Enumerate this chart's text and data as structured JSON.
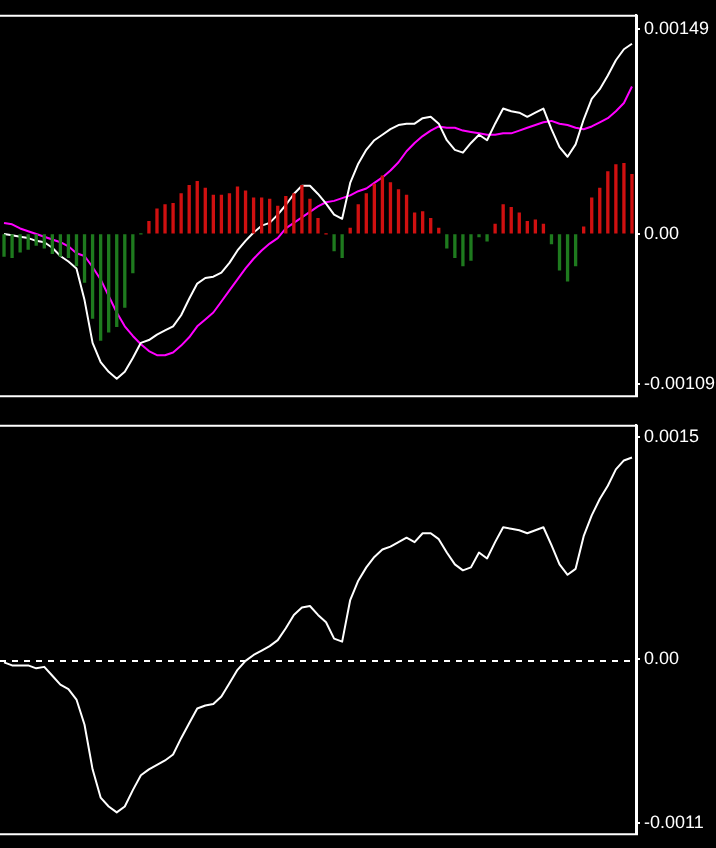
{
  "chart_data": [
    {
      "type": "bar",
      "categories": [
        null,
        null,
        null,
        null,
        null,
        null,
        null,
        null,
        null,
        null,
        null,
        null,
        null,
        null,
        null,
        null,
        null,
        null,
        null,
        null,
        null,
        null,
        null,
        null,
        null,
        null,
        null,
        null,
        null,
        null,
        null,
        null,
        null,
        null,
        null,
        null,
        null,
        null,
        null,
        null,
        null,
        null,
        null,
        null,
        null,
        null,
        null,
        null,
        null,
        null,
        null,
        null,
        null,
        null,
        null,
        null,
        null,
        null,
        null,
        null,
        null,
        null,
        null,
        null,
        null,
        null,
        null,
        null,
        null,
        null,
        null,
        null,
        null,
        null,
        null,
        null,
        null,
        null,
        null
      ],
      "ylim": [
        -0.00117,
        0.00159
      ],
      "yticks": [
        0.00149,
        {
          "value": 0,
          "label": "0.00"
        },
        -0.00109
      ],
      "tick_labels": "y",
      "grid": false,
      "legend": false,
      "marker": "none",
      "series": [
        {
          "values": [
            -0.00016,
            -0.00017,
            -0.00013,
            -0.00011,
            -8e-05,
            -0.0001,
            -0.00014,
            -0.00016,
            -0.00017,
            -0.00023,
            -0.00035,
            -0.00061,
            -0.00077,
            -0.00071,
            -0.00067,
            -0.00053,
            -0.00028,
            0,
            9e-05,
            0.00018,
            0.00021,
            0.00022,
            0.00029,
            0.00035,
            0.00038,
            0.00033,
            0.00028,
            0.00028,
            0.00029,
            0.00034,
            0.00031,
            0.00026,
            0.00026,
            0.00025,
            0.0002,
            0.00027,
            0.00029,
            0.00035,
            0.00025,
            0.00011,
            0,
            -0.00012,
            -0.00017,
            4e-05,
            0.00021,
            0.00029,
            0.00036,
            0.00042,
            0.00037,
            0.00032,
            0.00028,
            0.00015,
            0.00016,
            0.00011,
            4e-05,
            -0.0001,
            -0.00017,
            -0.00023,
            -0.00019,
            -2e-05,
            -5e-05,
            7e-05,
            0.00021,
            0.00019,
            0.00015,
            9e-05,
            0.0001,
            7e-05,
            -7e-05,
            -0.00026,
            -0.00034,
            -0.00023,
            5e-05,
            0.00026,
            0.00033,
            0.00045,
            0.0005,
            0.00051,
            0.00043
          ],
          "colors": [
            "#1e7a1e",
            "#1e7a1e",
            "#1e7a1e",
            "#1e7a1e",
            "#1e7a1e",
            "#1e7a1e",
            "#1e7a1e",
            "#1e7a1e",
            "#1e7a1e",
            "#1e7a1e",
            "#1e7a1e",
            "#1e7a1e",
            "#1e7a1e",
            "#1e7a1e",
            "#1e7a1e",
            "#1e7a1e",
            "#1e7a1e",
            "#1e7a1e",
            "#d01010",
            "#d01010",
            "#d01010",
            "#d01010",
            "#d01010",
            "#d01010",
            "#d01010",
            "#d01010",
            "#d01010",
            "#d01010",
            "#d01010",
            "#d01010",
            "#d01010",
            "#d01010",
            "#d01010",
            "#d01010",
            "#d01010",
            "#d01010",
            "#d01010",
            "#d01010",
            "#d01010",
            "#d01010",
            "#d01010",
            "#1e7a1e",
            "#1e7a1e",
            "#d01010",
            "#d01010",
            "#d01010",
            "#d01010",
            "#d01010",
            "#d01010",
            "#d01010",
            "#d01010",
            "#d01010",
            "#d01010",
            "#d01010",
            "#d01010",
            "#1e7a1e",
            "#1e7a1e",
            "#1e7a1e",
            "#1e7a1e",
            "#1e7a1e",
            "#1e7a1e",
            "#d01010",
            "#d01010",
            "#d01010",
            "#d01010",
            "#d01010",
            "#d01010",
            "#d01010",
            "#1e7a1e",
            "#1e7a1e",
            "#1e7a1e",
            "#1e7a1e",
            "#d01010",
            "#d01010",
            "#d01010",
            "#d01010",
            "#d01010",
            "#d01010",
            "#d01010"
          ]
        },
        {
          "type": "line",
          "color": "#ffffff",
          "values": [
            0,
            -1e-05,
            -2e-05,
            -3e-05,
            -5e-05,
            -6e-05,
            -0.0001,
            -0.00016,
            -0.0002,
            -0.00025,
            -0.00048,
            -0.00079,
            -0.00093,
            -0.001,
            -0.00105,
            -0.001,
            -0.0009,
            -0.00079,
            -0.00077,
            -0.00073,
            -0.0007,
            -0.00067,
            -0.00059,
            -0.00047,
            -0.00036,
            -0.00032,
            -0.00031,
            -0.00028,
            -0.00021,
            -0.00012,
            -5e-05,
            1e-05,
            6e-05,
            8e-05,
            0.00014,
            0.00021,
            0.00029,
            0.00035,
            0.00035,
            0.00029,
            0.00022,
            0.00014,
            0.00011,
            0.00037,
            0.00051,
            0.00061,
            0.00068,
            0.00072,
            0.00076,
            0.00079,
            0.0008,
            0.0008,
            0.00084,
            0.00085,
            0.0008,
            0.00068,
            0.00061,
            0.00059,
            0.00066,
            0.00072,
            0.00068,
            0.0008,
            0.00091,
            0.00089,
            0.00088,
            0.00085,
            0.00088,
            0.00091,
            0.00076,
            0.00063,
            0.00056,
            0.00065,
            0.00083,
            0.00098,
            0.00105,
            0.00115,
            0.00126,
            0.00134,
            0.00138
          ]
        },
        {
          "type": "line",
          "color": "#ff00ff",
          "values": [
            8e-05,
            7e-05,
            4e-05,
            2e-05,
            0,
            -2e-05,
            -4e-05,
            -6e-05,
            -9e-05,
            -0.00014,
            -0.00016,
            -0.00024,
            -0.00033,
            -0.00045,
            -0.00057,
            -0.00067,
            -0.00074,
            -0.0008,
            -0.00085,
            -0.00088,
            -0.00088,
            -0.00086,
            -0.00081,
            -0.00075,
            -0.00067,
            -0.00062,
            -0.00057,
            -0.00049,
            -0.00041,
            -0.00033,
            -0.00025,
            -0.00018,
            -0.00012,
            -7e-05,
            -3e-05,
            4e-05,
            8e-05,
            0.00012,
            0.00016,
            0.0002,
            0.00023,
            0.00024,
            0.00026,
            0.00028,
            0.00031,
            0.00033,
            0.00037,
            0.00041,
            0.00046,
            0.00052,
            0.0006,
            0.00066,
            0.00071,
            0.00075,
            0.00078,
            0.00077,
            0.00077,
            0.00075,
            0.00074,
            0.00073,
            0.00072,
            0.00072,
            0.00073,
            0.00073,
            0.00075,
            0.00077,
            0.00079,
            0.00081,
            0.00082,
            0.0008,
            0.00079,
            0.00077,
            0.00076,
            0.00078,
            0.00081,
            0.00084,
            0.00089,
            0.00095,
            0.00107
          ]
        }
      ]
    },
    {
      "type": "line",
      "categories": [
        null,
        null,
        null,
        null,
        null,
        null,
        null,
        null,
        null,
        null,
        null,
        null,
        null,
        null,
        null,
        null,
        null,
        null,
        null,
        null,
        null,
        null,
        null,
        null,
        null,
        null,
        null,
        null,
        null,
        null,
        null,
        null,
        null,
        null,
        null,
        null,
        null,
        null,
        null,
        null,
        null,
        null,
        null,
        null,
        null,
        null,
        null,
        null,
        null,
        null,
        null,
        null,
        null,
        null,
        null,
        null,
        null,
        null,
        null,
        null,
        null,
        null,
        null,
        null,
        null,
        null,
        null,
        null,
        null,
        null,
        null,
        null,
        null,
        null,
        null,
        null,
        null,
        null,
        null
      ],
      "ylim": [
        -0.00117,
        0.00158
      ],
      "yticks": [
        0.0015,
        {
          "value": 0,
          "label": "0.00"
        },
        -0.0011
      ],
      "tick_labels": "y",
      "grid": false,
      "legend": false,
      "marker": "none",
      "ref_lines": [
        {
          "axis": "y",
          "value": 0,
          "color": "#ffffff",
          "line_style": "dashed"
        }
      ],
      "series": [
        {
          "color": "#ffffff",
          "values": [
            -2e-05,
            -4e-05,
            -4e-05,
            -4e-05,
            -6e-05,
            -5e-05,
            -0.00011,
            -0.00017,
            -0.0002,
            -0.00027,
            -0.00044,
            -0.00074,
            -0.00093,
            -0.00099,
            -0.00103,
            -0.00099,
            -0.00088,
            -0.00078,
            -0.00074,
            -0.00071,
            -0.00068,
            -0.00064,
            -0.00053,
            -0.00043,
            -0.00033,
            -0.00031,
            -0.0003,
            -0.00025,
            -0.00016,
            -7e-05,
            -1e-05,
            3e-05,
            6e-05,
            9e-05,
            0.00013,
            0.00021,
            0.0003,
            0.00035,
            0.00036,
            0.0003,
            0.00025,
            0.00014,
            0.00012,
            0.0004,
            0.00053,
            0.00062,
            0.00069,
            0.00074,
            0.00076,
            0.00079,
            0.00082,
            0.00079,
            0.00085,
            0.00085,
            0.00081,
            0.00072,
            0.00064,
            0.0006,
            0.00062,
            0.00072,
            0.00068,
            0.00079,
            0.00089,
            0.00088,
            0.00087,
            0.00085,
            0.00087,
            0.00089,
            0.00077,
            0.00064,
            0.00057,
            0.00061,
            0.00083,
            0.00097,
            0.00108,
            0.00117,
            0.00128,
            0.00134,
            0.00136
          ]
        }
      ]
    }
  ]
}
